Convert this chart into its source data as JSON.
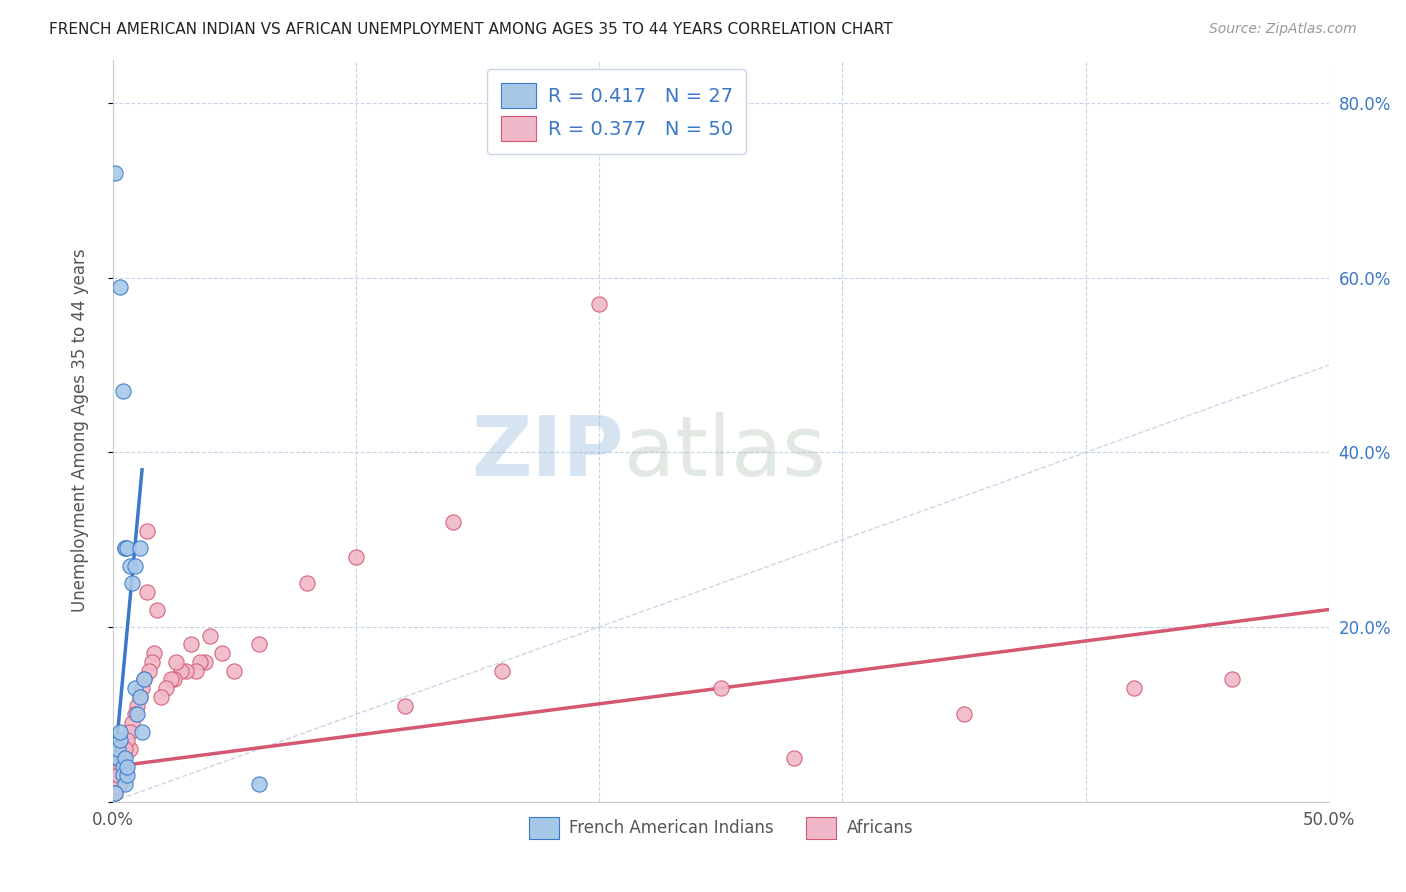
{
  "title": "FRENCH AMERICAN INDIAN VS AFRICAN UNEMPLOYMENT AMONG AGES 35 TO 44 YEARS CORRELATION CHART",
  "source": "Source: ZipAtlas.com",
  "ylabel": "Unemployment Among Ages 35 to 44 years",
  "xlim": [
    0,
    0.5
  ],
  "ylim": [
    0,
    0.85
  ],
  "xticks": [
    0.0,
    0.1,
    0.2,
    0.3,
    0.4,
    0.5
  ],
  "yticks": [
    0.0,
    0.2,
    0.4,
    0.6,
    0.8
  ],
  "xticklabels_visible": {
    "0.0": "0.0%",
    "0.5": "50.0%"
  },
  "yticklabels": [
    "",
    "20.0%",
    "40.0%",
    "60.0%",
    "80.0%"
  ],
  "legend_labels_bottom": [
    "French American Indians",
    "Africans"
  ],
  "blue_r": "0.417",
  "blue_n": "27",
  "pink_r": "0.377",
  "pink_n": "50",
  "blue_scatter": [
    [
      0.001,
      0.72
    ],
    [
      0.003,
      0.59
    ],
    [
      0.004,
      0.47
    ],
    [
      0.005,
      0.29
    ],
    [
      0.005,
      0.29
    ],
    [
      0.006,
      0.29
    ],
    [
      0.007,
      0.27
    ],
    [
      0.008,
      0.25
    ],
    [
      0.009,
      0.27
    ],
    [
      0.009,
      0.13
    ],
    [
      0.01,
      0.1
    ],
    [
      0.011,
      0.12
    ],
    [
      0.011,
      0.29
    ],
    [
      0.012,
      0.08
    ],
    [
      0.013,
      0.14
    ],
    [
      0.002,
      0.05
    ],
    [
      0.002,
      0.06
    ],
    [
      0.003,
      0.07
    ],
    [
      0.003,
      0.08
    ],
    [
      0.004,
      0.04
    ],
    [
      0.004,
      0.03
    ],
    [
      0.005,
      0.05
    ],
    [
      0.005,
      0.02
    ],
    [
      0.006,
      0.03
    ],
    [
      0.006,
      0.04
    ],
    [
      0.06,
      0.02
    ],
    [
      0.001,
      0.01
    ]
  ],
  "pink_scatter": [
    [
      0.2,
      0.57
    ],
    [
      0.14,
      0.32
    ],
    [
      0.1,
      0.28
    ],
    [
      0.08,
      0.25
    ],
    [
      0.06,
      0.18
    ],
    [
      0.05,
      0.15
    ],
    [
      0.045,
      0.17
    ],
    [
      0.04,
      0.19
    ],
    [
      0.038,
      0.16
    ],
    [
      0.036,
      0.16
    ],
    [
      0.034,
      0.15
    ],
    [
      0.032,
      0.18
    ],
    [
      0.03,
      0.15
    ],
    [
      0.028,
      0.15
    ],
    [
      0.026,
      0.16
    ],
    [
      0.025,
      0.14
    ],
    [
      0.024,
      0.14
    ],
    [
      0.022,
      0.13
    ],
    [
      0.02,
      0.12
    ],
    [
      0.018,
      0.22
    ],
    [
      0.017,
      0.17
    ],
    [
      0.016,
      0.16
    ],
    [
      0.015,
      0.15
    ],
    [
      0.014,
      0.24
    ],
    [
      0.014,
      0.31
    ],
    [
      0.013,
      0.14
    ],
    [
      0.012,
      0.13
    ],
    [
      0.011,
      0.12
    ],
    [
      0.01,
      0.11
    ],
    [
      0.009,
      0.1
    ],
    [
      0.008,
      0.09
    ],
    [
      0.007,
      0.08
    ],
    [
      0.007,
      0.06
    ],
    [
      0.006,
      0.07
    ],
    [
      0.005,
      0.06
    ],
    [
      0.005,
      0.04
    ],
    [
      0.004,
      0.05
    ],
    [
      0.004,
      0.03
    ],
    [
      0.003,
      0.04
    ],
    [
      0.003,
      0.02
    ],
    [
      0.002,
      0.02
    ],
    [
      0.002,
      0.03
    ],
    [
      0.001,
      0.01
    ],
    [
      0.35,
      0.1
    ],
    [
      0.28,
      0.05
    ],
    [
      0.25,
      0.13
    ],
    [
      0.46,
      0.14
    ],
    [
      0.42,
      0.13
    ],
    [
      0.16,
      0.15
    ],
    [
      0.12,
      0.11
    ]
  ],
  "blue_line_x": [
    0.0,
    0.012
  ],
  "blue_line_y": [
    0.02,
    0.38
  ],
  "pink_line_x": [
    0.0,
    0.5
  ],
  "pink_line_y": [
    0.04,
    0.22
  ],
  "diag_line_x": [
    0.0,
    0.5
  ],
  "diag_line_y": [
    0.0,
    0.5
  ],
  "blue_color": "#3a78c9",
  "blue_fill": "#a8c8e8",
  "pink_color": "#d45870",
  "pink_fill": "#f0b8c8",
  "diag_color": "#c0cce0",
  "watermark_zip": "ZIP",
  "watermark_atlas": "atlas",
  "background_color": "#ffffff",
  "grid_color": "#c8d4e8",
  "right_yaxis_color": "#3a78c9",
  "legend_text_color": "#3a78c9"
}
